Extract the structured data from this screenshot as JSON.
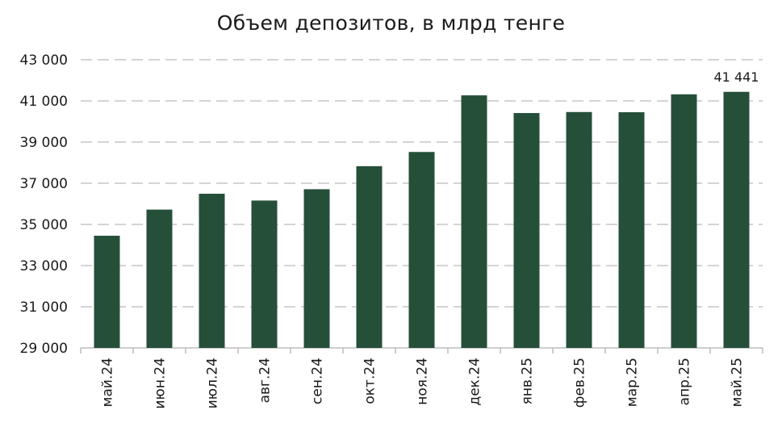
{
  "chart_data": {
    "type": "bar",
    "title": "Объем депозитов, в млрд тенге",
    "xlabel": "",
    "ylabel": "",
    "categories": [
      "май.24",
      "июн.24",
      "июл.24",
      "авг.24",
      "сен.24",
      "окт.24",
      "ноя.24",
      "дек.24",
      "янв.25",
      "фев.25",
      "мар.25",
      "апр.25",
      "май.25"
    ],
    "values": [
      34450,
      35720,
      36490,
      36160,
      36710,
      37830,
      38520,
      41270,
      40410,
      40460,
      40450,
      41320,
      41441
    ],
    "ylim": [
      29000,
      43000
    ],
    "yticks": [
      29000,
      31000,
      33000,
      35000,
      37000,
      39000,
      41000,
      43000
    ],
    "ytick_labels": [
      "29 000",
      "31 000",
      "33 000",
      "35 000",
      "37 000",
      "39 000",
      "41 000",
      "43 000"
    ],
    "data_labels": [
      {
        "index": 12,
        "text": "41 441"
      }
    ],
    "grid": true,
    "legend": "none",
    "bar_color": "#264f3a",
    "grid_color": "#d4d4d4",
    "text_color": "#1a1a1a"
  }
}
